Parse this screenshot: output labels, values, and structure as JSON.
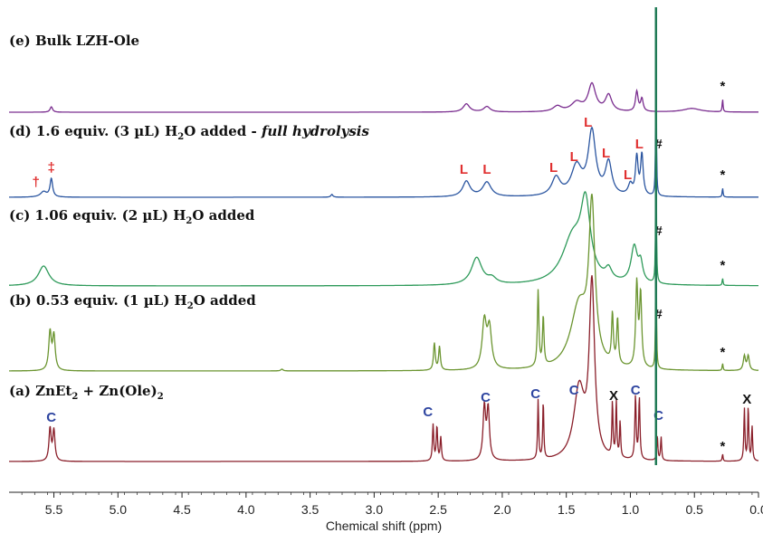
{
  "chart_data": {
    "type": "line",
    "title": "",
    "xlabel": "Chemical shift (ppm)",
    "ylabel": "",
    "xlim": [
      5.85,
      0.0
    ],
    "x_reversed": true,
    "x_ticks": [
      5.5,
      5.0,
      4.5,
      4.0,
      3.5,
      3.0,
      2.5,
      2.0,
      1.5,
      1.0,
      0.5,
      0.0
    ],
    "x_tick_labels": [
      "5.5",
      "5.0",
      "4.5",
      "4.0",
      "3.5",
      "3.0",
      "2.5",
      "2.0",
      "1.5",
      "1.0",
      "0.5",
      "0.0"
    ],
    "series": [
      {
        "id": "e",
        "name": "(e) Bulk LZH-Ole",
        "label_parts": {
          "pre": "(e) Bulk LZH-Ole",
          "sub": "",
          "post": "",
          "italic": ""
        },
        "color": "#7a2d8f",
        "scale": 1,
        "peaks": [
          {
            "ppm": 5.52,
            "h": 6,
            "w": 0.012
          },
          {
            "ppm": 2.28,
            "h": 9,
            "w": 0.03
          },
          {
            "ppm": 2.12,
            "h": 6,
            "w": 0.03
          },
          {
            "ppm": 1.57,
            "h": 6,
            "w": 0.04
          },
          {
            "ppm": 1.42,
            "h": 10,
            "w": 0.05
          },
          {
            "ppm": 1.3,
            "h": 30,
            "w": 0.035
          },
          {
            "ppm": 1.17,
            "h": 18,
            "w": 0.03
          },
          {
            "ppm": 0.95,
            "h": 22,
            "w": 0.012
          },
          {
            "ppm": 0.91,
            "h": 14,
            "w": 0.012
          },
          {
            "ppm": 0.52,
            "h": 4,
            "w": 0.08
          },
          {
            "ppm": 0.28,
            "h": 14,
            "w": 0.004
          }
        ],
        "markers": [
          {
            "ppm": 0.28,
            "h": 24,
            "text": "*",
            "color": "#111111"
          }
        ]
      },
      {
        "id": "d",
        "name": "(d) 1.6 equiv. (3 µL) H2O added - full hydrolysis",
        "label_parts": {
          "pre": "(d) 1.6 equiv. (3 µL) H",
          "sub": "2",
          "post": "O added - ",
          "italic": "full hydrolysis"
        },
        "color": "#2a55a0",
        "scale": 1,
        "peaks": [
          {
            "ppm": 5.58,
            "h": 6,
            "w": 0.03
          },
          {
            "ppm": 5.52,
            "h": 20,
            "w": 0.012
          },
          {
            "ppm": 3.33,
            "h": 3,
            "w": 0.01
          },
          {
            "ppm": 2.28,
            "h": 17,
            "w": 0.035
          },
          {
            "ppm": 2.12,
            "h": 16,
            "w": 0.04
          },
          {
            "ppm": 1.58,
            "h": 20,
            "w": 0.04
          },
          {
            "ppm": 1.42,
            "h": 32,
            "w": 0.05
          },
          {
            "ppm": 1.3,
            "h": 70,
            "w": 0.035
          },
          {
            "ppm": 1.17,
            "h": 36,
            "w": 0.03
          },
          {
            "ppm": 1.0,
            "h": 12,
            "w": 0.02
          },
          {
            "ppm": 0.95,
            "h": 42,
            "w": 0.012
          },
          {
            "ppm": 0.91,
            "h": 45,
            "w": 0.012
          },
          {
            "ppm": 0.8,
            "h": 200,
            "w": 0.003
          },
          {
            "ppm": 0.28,
            "h": 10,
            "w": 0.004
          }
        ],
        "markers": [
          {
            "ppm": 5.64,
            "h": 12,
            "text": "†",
            "color": "#e03030"
          },
          {
            "ppm": 5.52,
            "h": 28,
            "text": "‡",
            "color": "#e03030"
          },
          {
            "ppm": 2.3,
            "h": 26,
            "text": "L",
            "color": "#e03030"
          },
          {
            "ppm": 2.12,
            "h": 26,
            "text": "L",
            "color": "#e03030"
          },
          {
            "ppm": 1.6,
            "h": 28,
            "text": "L",
            "color": "#e03030"
          },
          {
            "ppm": 1.44,
            "h": 40,
            "text": "L",
            "color": "#e03030"
          },
          {
            "ppm": 1.33,
            "h": 78,
            "text": "L",
            "color": "#e03030"
          },
          {
            "ppm": 1.19,
            "h": 44,
            "text": "L",
            "color": "#e03030"
          },
          {
            "ppm": 1.02,
            "h": 20,
            "text": "L",
            "color": "#e03030"
          },
          {
            "ppm": 0.93,
            "h": 54,
            "text": "L",
            "color": "#e03030"
          },
          {
            "ppm": 0.78,
            "h": 54,
            "text": "#",
            "color": "#111111"
          },
          {
            "ppm": 0.28,
            "h": 20,
            "text": "*",
            "color": "#111111"
          }
        ]
      },
      {
        "id": "c",
        "name": "(c) 1.06 equiv. (2 µL) H2O added",
        "label_parts": {
          "pre": "(c) 1.06 equiv. (2 µL) H",
          "sub": "2",
          "post": "O added",
          "italic": ""
        },
        "color": "#2e9a5a",
        "scale": 1,
        "peaks": [
          {
            "ppm": 5.58,
            "h": 22,
            "w": 0.05
          },
          {
            "ppm": 2.2,
            "h": 30,
            "w": 0.05
          },
          {
            "ppm": 2.08,
            "h": 6,
            "w": 0.04
          },
          {
            "ppm": 1.45,
            "h": 50,
            "w": 0.1
          },
          {
            "ppm": 1.35,
            "h": 78,
            "w": 0.045
          },
          {
            "ppm": 1.17,
            "h": 12,
            "w": 0.03
          },
          {
            "ppm": 0.97,
            "h": 40,
            "w": 0.03
          },
          {
            "ppm": 0.92,
            "h": 20,
            "w": 0.02
          },
          {
            "ppm": 0.8,
            "h": 200,
            "w": 0.003
          },
          {
            "ppm": 0.28,
            "h": 8,
            "w": 0.004
          }
        ],
        "markers": [
          {
            "ppm": 0.78,
            "h": 56,
            "text": "#",
            "color": "#111111"
          },
          {
            "ppm": 0.28,
            "h": 18,
            "text": "*",
            "color": "#111111"
          }
        ]
      },
      {
        "id": "b",
        "name": "(b) 0.53 equiv. (1 µL) H2O added",
        "label_parts": {
          "pre": "(b) 0.53 equiv. (1 µL) H",
          "sub": "2",
          "post": "O added",
          "italic": ""
        },
        "color": "#6b9530",
        "scale": 1,
        "peaks": [
          {
            "ppm": 5.53,
            "h": 42,
            "w": 0.012
          },
          {
            "ppm": 5.5,
            "h": 38,
            "w": 0.012
          },
          {
            "ppm": 3.72,
            "h": 2,
            "w": 0.01
          },
          {
            "ppm": 2.53,
            "h": 30,
            "w": 0.008
          },
          {
            "ppm": 2.49,
            "h": 26,
            "w": 0.008
          },
          {
            "ppm": 2.14,
            "h": 52,
            "w": 0.02
          },
          {
            "ppm": 2.1,
            "h": 44,
            "w": 0.02
          },
          {
            "ppm": 1.72,
            "h": 84,
            "w": 0.007
          },
          {
            "ppm": 1.68,
            "h": 54,
            "w": 0.007
          },
          {
            "ppm": 1.4,
            "h": 70,
            "w": 0.08
          },
          {
            "ppm": 1.3,
            "h": 168,
            "w": 0.028
          },
          {
            "ppm": 1.14,
            "h": 54,
            "w": 0.008
          },
          {
            "ppm": 1.1,
            "h": 50,
            "w": 0.008
          },
          {
            "ppm": 0.95,
            "h": 92,
            "w": 0.01
          },
          {
            "ppm": 0.92,
            "h": 80,
            "w": 0.01
          },
          {
            "ppm": 0.8,
            "h": 200,
            "w": 0.003
          },
          {
            "ppm": 0.28,
            "h": 8,
            "w": 0.004
          },
          {
            "ppm": 0.11,
            "h": 16,
            "w": 0.01
          },
          {
            "ppm": 0.08,
            "h": 16,
            "w": 0.01
          }
        ],
        "markers": [
          {
            "ppm": 0.78,
            "h": 58,
            "text": "#",
            "color": "#111111"
          },
          {
            "ppm": 0.28,
            "h": 16,
            "text": "*",
            "color": "#111111"
          }
        ]
      },
      {
        "id": "a",
        "name": "(a) ZnEt2 + Zn(Ole)2",
        "label_parts": {
          "pre": "(a) ZnEt",
          "sub": "2",
          "post": " + Zn(Ole)",
          "sub2": "2",
          "italic": ""
        },
        "color": "#8a1f2a",
        "scale": 1,
        "peaks": [
          {
            "ppm": 5.53,
            "h": 36,
            "w": 0.01
          },
          {
            "ppm": 5.5,
            "h": 34,
            "w": 0.01
          },
          {
            "ppm": 2.54,
            "h": 40,
            "w": 0.006
          },
          {
            "ppm": 2.51,
            "h": 38,
            "w": 0.006
          },
          {
            "ppm": 2.48,
            "h": 26,
            "w": 0.006
          },
          {
            "ppm": 2.14,
            "h": 58,
            "w": 0.012
          },
          {
            "ppm": 2.11,
            "h": 56,
            "w": 0.012
          },
          {
            "ppm": 1.72,
            "h": 66,
            "w": 0.005
          },
          {
            "ppm": 1.68,
            "h": 64,
            "w": 0.005
          },
          {
            "ppm": 1.4,
            "h": 78,
            "w": 0.05
          },
          {
            "ppm": 1.3,
            "h": 190,
            "w": 0.025
          },
          {
            "ppm": 1.14,
            "h": 60,
            "w": 0.005
          },
          {
            "ppm": 1.11,
            "h": 62,
            "w": 0.005
          },
          {
            "ppm": 1.08,
            "h": 40,
            "w": 0.005
          },
          {
            "ppm": 0.96,
            "h": 70,
            "w": 0.006
          },
          {
            "ppm": 0.93,
            "h": 68,
            "w": 0.006
          },
          {
            "ppm": 0.79,
            "h": 28,
            "w": 0.005
          },
          {
            "ppm": 0.76,
            "h": 26,
            "w": 0.005
          },
          {
            "ppm": 0.28,
            "h": 8,
            "w": 0.004
          },
          {
            "ppm": 0.11,
            "h": 58,
            "w": 0.005
          },
          {
            "ppm": 0.08,
            "h": 60,
            "w": 0.005
          },
          {
            "ppm": 0.05,
            "h": 38,
            "w": 0.005
          }
        ],
        "markers": [
          {
            "ppm": 5.52,
            "h": 44,
            "text": "C",
            "color": "#2e45a0"
          },
          {
            "ppm": 2.58,
            "h": 50,
            "text": "C",
            "color": "#2e45a0"
          },
          {
            "ppm": 2.13,
            "h": 66,
            "text": "C",
            "color": "#2e45a0"
          },
          {
            "ppm": 1.74,
            "h": 70,
            "text": "C",
            "color": "#2e45a0"
          },
          {
            "ppm": 1.44,
            "h": 74,
            "text": "C",
            "color": "#2e45a0"
          },
          {
            "ppm": 1.13,
            "h": 68,
            "text": "X",
            "color": "#111111"
          },
          {
            "ppm": 0.96,
            "h": 74,
            "text": "C",
            "color": "#2e45a0"
          },
          {
            "ppm": 0.78,
            "h": 46,
            "text": "C",
            "color": "#2e45a0"
          },
          {
            "ppm": 0.28,
            "h": 12,
            "text": "*",
            "color": "#111111"
          },
          {
            "ppm": 0.09,
            "h": 64,
            "text": "X",
            "color": "#111111"
          }
        ]
      }
    ],
    "overlay_line": {
      "ppm": 0.8,
      "color": "#1f7a55"
    }
  }
}
